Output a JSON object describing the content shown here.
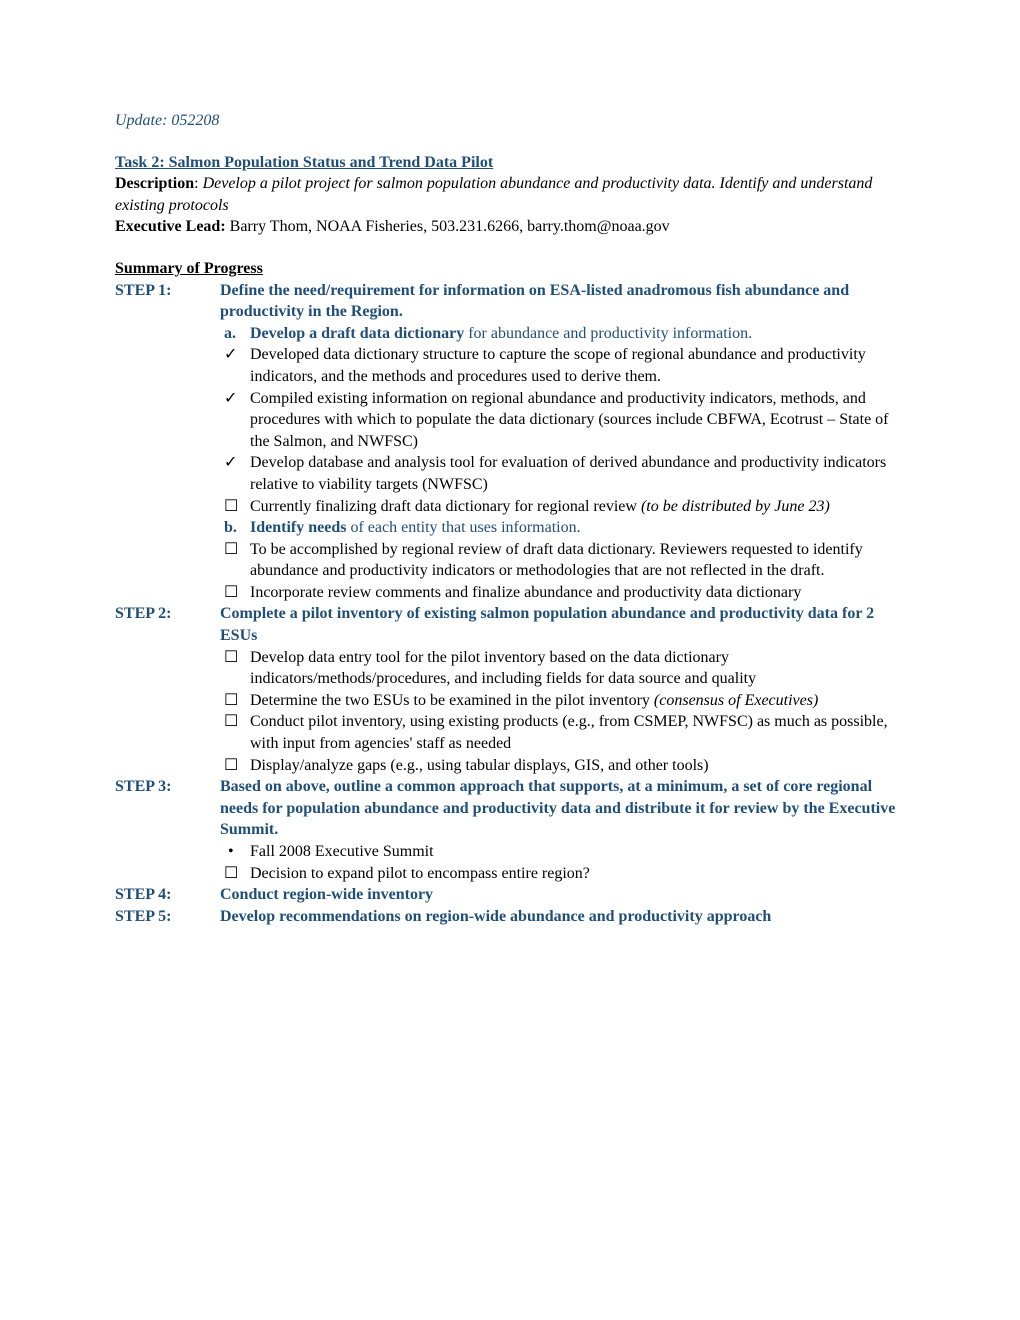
{
  "update": "Update:  052208",
  "task": {
    "title": "Task 2:  Salmon Population Status and Trend Data Pilot",
    "descLabel": "Description",
    "descColon": ":   ",
    "descText": "Develop a pilot project for salmon population abundance and productivity data. Identify and understand existing protocols",
    "execLabel": "Executive Lead:",
    "execText": "  Barry Thom, NOAA Fisheries, 503.231.6266, barry.thom@noaa.gov"
  },
  "summaryHeader": "Summary of Progress",
  "step1": {
    "label": "STEP 1:",
    "title": "Define the need/requirement for information on ESA-listed anadromous fish abundance and productivity in the Region.",
    "a": {
      "letter": "a.",
      "bold": "Develop a draft data dictionary",
      "rest": " for abundance and productivity information."
    },
    "items": [
      {
        "mark": "✓",
        "text": "Developed data dictionary structure to capture the scope of regional abundance and productivity indicators, and the methods and procedures used to derive them."
      },
      {
        "mark": "✓",
        "text": "Compiled existing information on regional abundance and productivity indicators, methods, and procedures with which to populate the data dictionary (sources include CBFWA, Ecotrust – State of the Salmon, and NWFSC)"
      },
      {
        "mark": "✓",
        "text": "Develop database and analysis tool for evaluation of derived abundance and productivity indicators relative to viability targets (NWFSC)"
      },
      {
        "mark": "☐",
        "text": " Currently finalizing draft data dictionary for regional review ",
        "note": "(to be distributed by June 23)"
      }
    ],
    "b": {
      "letter": "b.",
      "bold": "Identify needs",
      "rest": " of each entity that uses information."
    },
    "bitems": [
      {
        "mark": "☐",
        "text": "To be accomplished by regional review of draft data dictionary.  Reviewers requested to identify abundance and productivity indicators or methodologies that are not reflected in the draft."
      },
      {
        "mark": "☐",
        "text": "Incorporate review comments and finalize abundance and productivity data dictionary"
      }
    ]
  },
  "step2": {
    "label": "STEP 2:",
    "title": "Complete a pilot inventory of existing salmon population abundance and productivity data for 2 ESUs",
    "items": [
      {
        "mark": "☐",
        "text": "Develop data entry tool for the pilot inventory based on the data dictionary indicators/methods/procedures, and including fields for data source and quality"
      },
      {
        "mark": "☐",
        "text": "Determine the two ESUs to be examined in the pilot inventory ",
        "note": "(consensus of Executives)"
      },
      {
        "mark": "☐",
        "text": "Conduct pilot inventory, using existing products (e.g., from CSMEP, NWFSC) as much as possible, with input from agencies' staff as needed"
      },
      {
        "mark": "☐",
        "text": "Display/analyze gaps (e.g., using tabular displays, GIS, and other tools)"
      }
    ]
  },
  "step3": {
    "label": "STEP 3:",
    "title": "Based on above, outline a common approach that supports, at a minimum, a set of core regional needs for population abundance and productivity data and distribute it for review by the Executive Summit.",
    "items": [
      {
        "mark": "•",
        "text": "Fall 2008 Executive Summit"
      },
      {
        "mark": "☐",
        "text": "Decision to expand pilot to encompass entire region?"
      }
    ]
  },
  "step4": {
    "label": "STEP 4:",
    "title": "Conduct region-wide inventory"
  },
  "step5": {
    "label": "STEP 5:",
    "title": "Develop recommendations on region-wide abundance and productivity approach"
  }
}
